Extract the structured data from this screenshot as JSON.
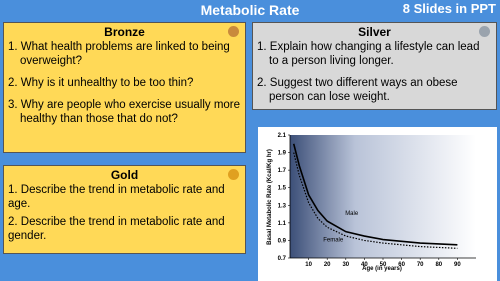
{
  "header": {
    "title": "Metabolic Rate",
    "badge": "8 Slides in PPT"
  },
  "bronze": {
    "title": "Bronze",
    "items": [
      "1. What health problems are linked to being overweight?",
      "2. Why is it unhealthy to be too thin?",
      "3. Why are people who exercise usually more healthy than those that do not?"
    ]
  },
  "silver": {
    "title": "Silver",
    "items": [
      "1. Explain how changing a lifestyle can lead to a person living longer.",
      "2. Suggest two different ways an obese person can lose weight."
    ]
  },
  "gold": {
    "title": "Gold",
    "items": [
      "1. Describe the trend in metabolic rate and age.",
      "2. Describe the trend in metabolic rate and gender."
    ]
  },
  "chart": {
    "type": "line",
    "xlabel": "Age (in years)",
    "ylabel": "Basal Metabolic Rate (Kcal/Kg hr)",
    "x": [
      2,
      5,
      10,
      15,
      20,
      30,
      40,
      50,
      60,
      70,
      80,
      90
    ],
    "series": [
      {
        "name": "Male",
        "color": "#000000",
        "dashed": false,
        "values": [
          2.0,
          1.75,
          1.42,
          1.24,
          1.12,
          1.0,
          0.95,
          0.91,
          0.89,
          0.87,
          0.86,
          0.85
        ]
      },
      {
        "name": "Female",
        "color": "#000000",
        "dashed": true,
        "values": [
          1.9,
          1.64,
          1.33,
          1.15,
          1.05,
          0.95,
          0.9,
          0.87,
          0.85,
          0.83,
          0.82,
          0.81
        ]
      }
    ],
    "xlim": [
      0,
      100
    ],
    "ylim": [
      0.7,
      2.1
    ],
    "xticks": [
      10,
      20,
      30,
      40,
      50,
      60,
      70,
      80,
      90
    ],
    "yticks": [
      0.7,
      0.9,
      1.1,
      1.3,
      1.5,
      1.7,
      1.9,
      2.1
    ]
  }
}
